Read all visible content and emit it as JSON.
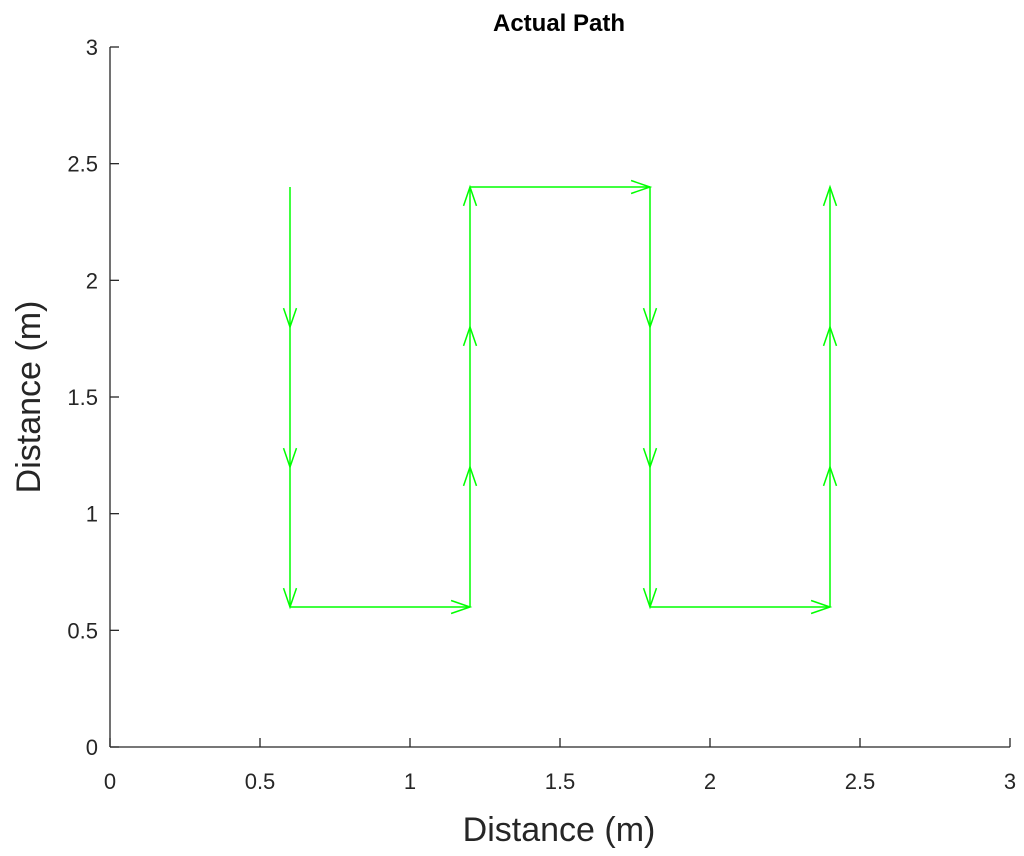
{
  "chart_data": {
    "type": "line",
    "title": "Actual Path",
    "xlabel": "Distance (m)",
    "ylabel": "Distance (m)",
    "xlim": [
      0,
      3
    ],
    "ylim": [
      0,
      3
    ],
    "xticks": [
      0,
      0.5,
      1,
      1.5,
      2,
      2.5,
      3
    ],
    "yticks": [
      0,
      0.5,
      1,
      1.5,
      2,
      2.5,
      3
    ],
    "xtick_labels": [
      "0",
      "0.5",
      "1",
      "1.5",
      "2",
      "2.5",
      "3"
    ],
    "ytick_labels": [
      "0",
      "0.5",
      "1",
      "1.5",
      "2",
      "2.5",
      "3"
    ],
    "grid": false,
    "series": [
      {
        "color": "#00ff00",
        "style": "quiver",
        "x": [
          0.6,
          0.6,
          0.6,
          0.6,
          1.2,
          1.2,
          1.2,
          1.2,
          1.8,
          1.8,
          1.8,
          1.8,
          2.4,
          2.4,
          2.4,
          2.4
        ],
        "y": [
          2.4,
          1.8,
          1.2,
          0.6,
          0.6,
          1.2,
          1.8,
          2.4,
          2.4,
          1.8,
          1.2,
          0.6,
          0.6,
          1.2,
          1.8,
          2.4
        ],
        "arrows": [
          {
            "from": [
              0.6,
              2.4
            ],
            "to": [
              0.6,
              1.8
            ]
          },
          {
            "from": [
              0.6,
              1.8
            ],
            "to": [
              0.6,
              1.2
            ]
          },
          {
            "from": [
              0.6,
              1.2
            ],
            "to": [
              0.6,
              0.6
            ]
          },
          {
            "from": [
              0.6,
              0.6
            ],
            "to": [
              1.2,
              0.6
            ]
          },
          {
            "from": [
              1.2,
              0.6
            ],
            "to": [
              1.2,
              1.2
            ]
          },
          {
            "from": [
              1.2,
              1.2
            ],
            "to": [
              1.2,
              1.8
            ]
          },
          {
            "from": [
              1.2,
              1.8
            ],
            "to": [
              1.2,
              2.4
            ]
          },
          {
            "from": [
              1.2,
              2.4
            ],
            "to": [
              1.8,
              2.4
            ]
          },
          {
            "from": [
              1.8,
              2.4
            ],
            "to": [
              1.8,
              1.8
            ]
          },
          {
            "from": [
              1.8,
              1.8
            ],
            "to": [
              1.8,
              1.2
            ]
          },
          {
            "from": [
              1.8,
              1.2
            ],
            "to": [
              1.8,
              0.6
            ]
          },
          {
            "from": [
              1.8,
              0.6
            ],
            "to": [
              2.4,
              0.6
            ]
          },
          {
            "from": [
              2.4,
              0.6
            ],
            "to": [
              2.4,
              1.2
            ]
          },
          {
            "from": [
              2.4,
              1.2
            ],
            "to": [
              2.4,
              1.8
            ]
          },
          {
            "from": [
              2.4,
              1.8
            ],
            "to": [
              2.4,
              2.4
            ]
          }
        ]
      }
    ]
  }
}
